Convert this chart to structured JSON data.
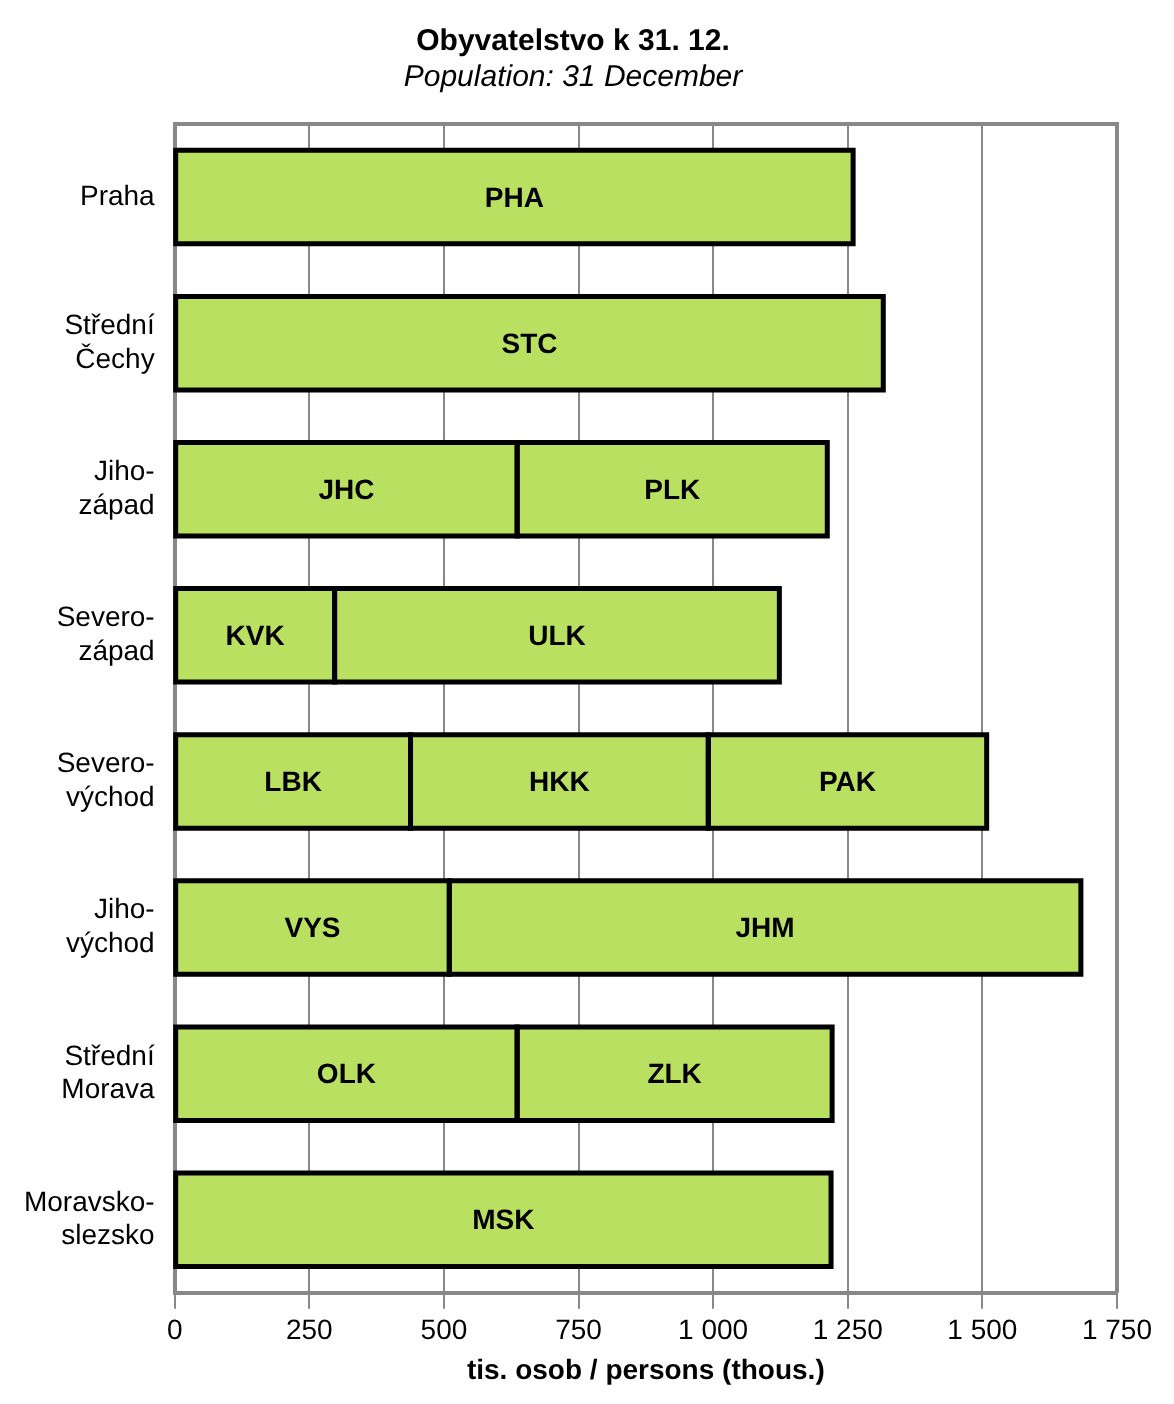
{
  "chart_data": {
    "type": "bar",
    "orientation": "horizontal",
    "stacked": true,
    "title": "Obyvatelstvo k 31. 12.",
    "subtitle": "Population: 31 December",
    "xlabel": "tis. osob / persons (thous.)",
    "categories": [
      "Praha",
      "Střední\nČechy",
      "Jiho-\nzápad",
      "Severo-\nzápad",
      "Severo-\nvýchod",
      "Jiho-\nvýchod",
      "Střední\nMorava",
      "Moravsko-\nslezsko"
    ],
    "series": [
      {
        "color": "#b9e060",
        "values": [
          1260,
          1316,
          636,
          297,
          438,
          510,
          636,
          1219
        ],
        "value_labels": [
          "PHA",
          "STC",
          "JHC",
          "KVK",
          "LBK",
          "VYS",
          "OLK",
          "MSK"
        ]
      },
      {
        "color": "#b9e060",
        "values": [
          null,
          null,
          576,
          826,
          553,
          1173,
          585,
          null
        ],
        "value_labels": [
          null,
          null,
          "PLK",
          "ULK",
          "HKK",
          "JHM",
          "ZLK",
          null
        ]
      },
      {
        "color": "#b9e060",
        "values": [
          null,
          null,
          null,
          null,
          517,
          null,
          null,
          null
        ],
        "value_labels": [
          null,
          null,
          null,
          null,
          "PAK",
          null,
          null,
          null
        ]
      }
    ],
    "xlim": [
      0,
      1750
    ],
    "xticks": [
      0,
      250,
      500,
      750,
      {
        "value": 1000,
        "label": "1 000"
      },
      {
        "value": 1250,
        "label": "1 250"
      },
      {
        "value": 1500,
        "label": "1 500"
      },
      {
        "value": 1750,
        "label": "1 750"
      }
    ],
    "grid": "x",
    "legend": false
  }
}
